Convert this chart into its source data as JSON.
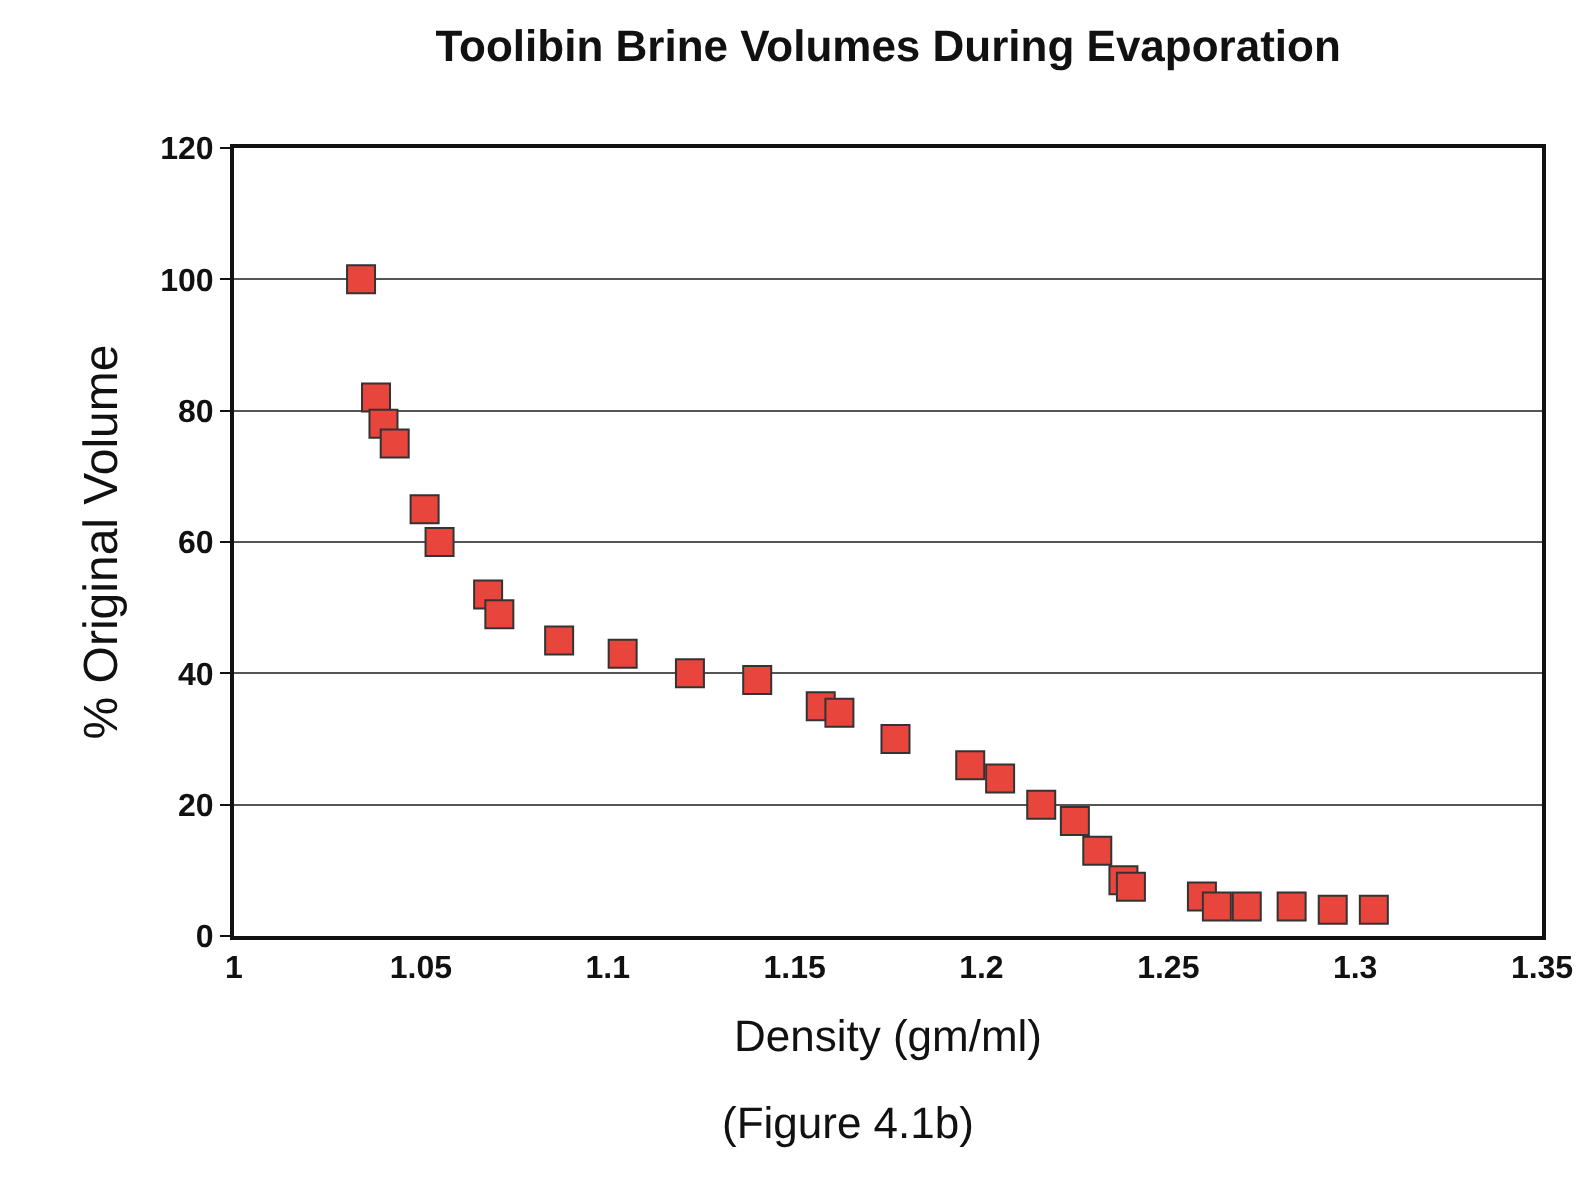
{
  "chart_data": {
    "type": "scatter",
    "title": "Toolibin Brine Volumes During Evaporation",
    "xlabel": "Density (gm/ml)",
    "ylabel": "% Original Volume",
    "annotations": [
      "(Figure 4.1b)"
    ],
    "x": [
      1.034,
      1.038,
      1.04,
      1.043,
      1.051,
      1.055,
      1.068,
      1.071,
      1.087,
      1.104,
      1.122,
      1.14,
      1.157,
      1.162,
      1.177,
      1.197,
      1.205,
      1.216,
      1.225,
      1.231,
      1.238,
      1.24,
      1.259,
      1.263,
      1.271,
      1.283,
      1.294,
      1.305
    ],
    "series": [
      {
        "color": "#e8453c",
        "values": [
          100,
          82,
          78,
          75,
          65,
          60,
          52,
          49,
          45,
          43,
          40,
          39,
          35,
          34,
          30,
          26,
          24,
          20,
          17.5,
          13,
          8.5,
          7.5,
          6,
          4.5,
          4.5,
          4.5,
          4,
          4
        ]
      }
    ],
    "xlim": [
      1,
      1.35
    ],
    "xticks": [
      1,
      1.05,
      1.1,
      1.15,
      1.2,
      1.25,
      1.3,
      1.35
    ],
    "ylim": [
      0,
      120
    ],
    "yticks": [
      0,
      20,
      40,
      60,
      80,
      100,
      120
    ],
    "grid": "y",
    "marker": "square"
  }
}
